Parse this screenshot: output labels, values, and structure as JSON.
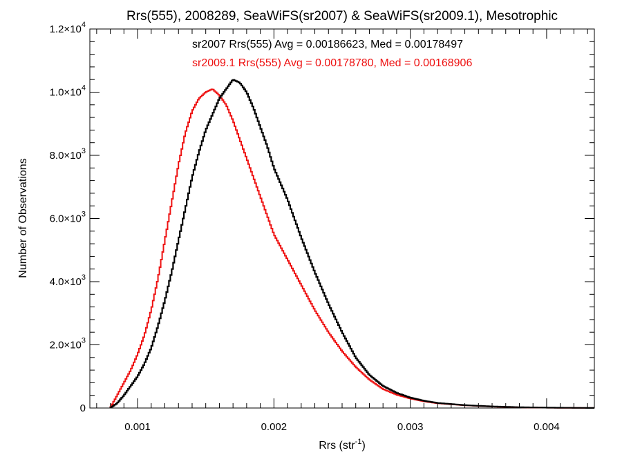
{
  "chart_data": {
    "type": "line",
    "style": "step-histogram",
    "title": "Rrs(555), 2008289, SeaWiFS(sr2007) & SeaWiFS(sr2009.1), Mesotrophic",
    "xlabel": {
      "base": "Rrs (str",
      "sup": "-1",
      "tail": ")"
    },
    "ylabel": "Number of Observations",
    "xlim": [
      0.00065,
      0.00435
    ],
    "ylim": [
      0,
      12000
    ],
    "grid": false,
    "x_ticks": [
      {
        "value": 0.001,
        "label": "0.001"
      },
      {
        "value": 0.002,
        "label": "0.002"
      },
      {
        "value": 0.003,
        "label": "0.003"
      },
      {
        "value": 0.004,
        "label": "0.004"
      }
    ],
    "y_ticks": [
      {
        "value": 0,
        "mant": "0",
        "exp": ""
      },
      {
        "value": 2000,
        "mant": "2.0×10",
        "exp": "3"
      },
      {
        "value": 4000,
        "mant": "4.0×10",
        "exp": "3"
      },
      {
        "value": 6000,
        "mant": "6.0×10",
        "exp": "3"
      },
      {
        "value": 8000,
        "mant": "8.0×10",
        "exp": "3"
      },
      {
        "value": 10000,
        "mant": "1.0×10",
        "exp": "4"
      },
      {
        "value": 12000,
        "mant": "1.2×10",
        "exp": "4"
      }
    ],
    "annotations": [
      {
        "text": "sr2007 Rrs(555) Avg = 0.00186623, Med = 0.00178497",
        "color": "#000000"
      },
      {
        "text": "sr2009.1 Rrs(555) Avg = 0.00178780, Med = 0.00168906",
        "color": "#ee1111"
      }
    ],
    "series": [
      {
        "color": "#000000",
        "x": [
          0.0008,
          0.00085,
          0.0009,
          0.00095,
          0.001,
          0.00105,
          0.0011,
          0.00115,
          0.0012,
          0.00125,
          0.0013,
          0.00135,
          0.0014,
          0.00145,
          0.0015,
          0.00155,
          0.0016,
          0.00165,
          0.0017,
          0.00175,
          0.0018,
          0.00185,
          0.0019,
          0.00195,
          0.002,
          0.0021,
          0.0022,
          0.0023,
          0.0024,
          0.0025,
          0.0026,
          0.0027,
          0.0028,
          0.0029,
          0.003,
          0.0031,
          0.0032,
          0.0034,
          0.0036,
          0.0038,
          0.004,
          0.0042,
          0.00435
        ],
        "y": [
          0,
          150,
          400,
          700,
          1000,
          1400,
          1900,
          2600,
          3400,
          4300,
          5300,
          6300,
          7300,
          8100,
          8800,
          9300,
          9800,
          10100,
          10400,
          10300,
          10000,
          9500,
          8900,
          8300,
          7600,
          6600,
          5400,
          4300,
          3300,
          2400,
          1600,
          1050,
          700,
          480,
          330,
          230,
          160,
          90,
          50,
          25,
          12,
          5,
          2
        ]
      },
      {
        "color": "#ee1111",
        "x": [
          0.0008,
          0.00085,
          0.0009,
          0.00095,
          0.001,
          0.00105,
          0.0011,
          0.00115,
          0.0012,
          0.00125,
          0.0013,
          0.00135,
          0.0014,
          0.00145,
          0.0015,
          0.00155,
          0.0016,
          0.00165,
          0.0017,
          0.00175,
          0.0018,
          0.00185,
          0.0019,
          0.00195,
          0.002,
          0.0021,
          0.0022,
          0.0023,
          0.0024,
          0.0025,
          0.0026,
          0.0027,
          0.0028,
          0.0029,
          0.003,
          0.0031,
          0.0032,
          0.0034,
          0.0036,
          0.0038,
          0.004,
          0.0042,
          0.00435
        ],
        "y": [
          0,
          400,
          800,
          1200,
          1700,
          2300,
          3100,
          4100,
          5300,
          6500,
          7700,
          8700,
          9400,
          9800,
          10000,
          10100,
          9900,
          9600,
          9100,
          8500,
          7900,
          7300,
          6700,
          6100,
          5500,
          4700,
          3900,
          3100,
          2400,
          1800,
          1300,
          900,
          600,
          420,
          300,
          210,
          150,
          85,
          45,
          22,
          10,
          4,
          2
        ]
      }
    ]
  }
}
